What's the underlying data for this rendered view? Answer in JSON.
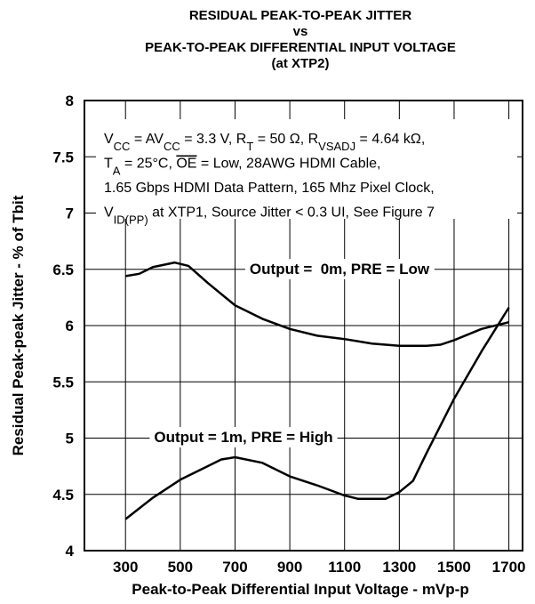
{
  "chart_data": {
    "type": "line",
    "title": [
      "RESIDUAL PEAK-TO-PEAK JITTER",
      "vs",
      "PEAK-TO-PEAK DIFFERENTIAL INPUT VOLTAGE",
      "(at XTP2)"
    ],
    "xlabel": "Peak-to-Peak Differential Input Voltage - mVp-p",
    "ylabel": "Residual Peak-peak Jitter - % of Tbit",
    "xlim": [
      150,
      1750
    ],
    "ylim": [
      4,
      8
    ],
    "xticks": [
      300,
      500,
      700,
      900,
      1100,
      1300,
      1500,
      1700
    ],
    "yticks": [
      4,
      4.5,
      5,
      5.5,
      6,
      6.5,
      7,
      7.5,
      8
    ],
    "grid": true,
    "annotation": [
      [
        {
          "text": "V"
        },
        {
          "text": "CC",
          "sub": true
        },
        {
          "text": " = AV"
        },
        {
          "text": "CC",
          "sub": true
        },
        {
          "text": " = 3.3 V, R"
        },
        {
          "text": "T",
          "sub": true
        },
        {
          "text": " = 50 Ω, R"
        },
        {
          "text": "VSADJ",
          "sub": true
        },
        {
          "text": " = 4.64 kΩ,"
        }
      ],
      [
        {
          "text": "T"
        },
        {
          "text": "A",
          "sub": true
        },
        {
          "text": " = 25°C, "
        },
        {
          "text": "OE",
          "overline": true
        },
        {
          "text": " = Low, 28AWG HDMI Cable,"
        }
      ],
      [
        {
          "text": "1.65 Gbps HDMI Data Pattern, 165 Mhz Pixel Clock,"
        }
      ],
      [
        {
          "text": "V"
        },
        {
          "text": "ID(PP)",
          "sub": true
        },
        {
          "text": " at XTP1, Source Jitter < 0.3 UI, See Figure 7"
        }
      ]
    ],
    "series": [
      {
        "name": "Output =  0m, PRE = Low",
        "color": "#000000",
        "x": [
          300,
          350,
          400,
          480,
          530,
          600,
          700,
          800,
          900,
          1000,
          1100,
          1200,
          1300,
          1400,
          1450,
          1500,
          1600,
          1700
        ],
        "values": [
          6.44,
          6.46,
          6.52,
          6.56,
          6.53,
          6.38,
          6.18,
          6.06,
          5.97,
          5.91,
          5.88,
          5.84,
          5.82,
          5.82,
          5.83,
          5.87,
          5.97,
          6.03
        ]
      },
      {
        "name": "Output = 1m, PRE = High",
        "color": "#000000",
        "x": [
          300,
          400,
          500,
          600,
          650,
          700,
          800,
          900,
          1000,
          1100,
          1150,
          1250,
          1300,
          1350,
          1400,
          1500,
          1600,
          1700
        ],
        "values": [
          4.28,
          4.47,
          4.63,
          4.75,
          4.81,
          4.83,
          4.78,
          4.66,
          4.58,
          4.49,
          4.46,
          4.46,
          4.52,
          4.62,
          4.87,
          5.35,
          5.77,
          6.16
        ]
      }
    ]
  }
}
